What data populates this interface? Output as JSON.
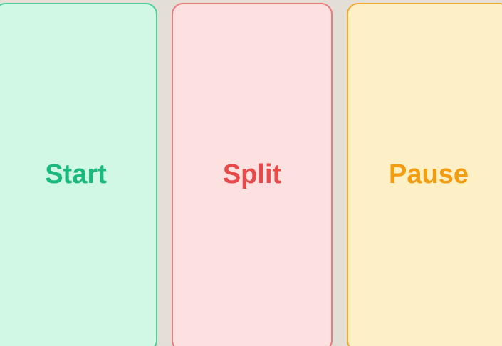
{
  "buttons": {
    "start": {
      "label": "Start",
      "text_color": "#1bb97d",
      "background": "#d1f7e5",
      "border": "#4ccf9b"
    },
    "split": {
      "label": "Split",
      "text_color": "#e84a4a",
      "background": "#fde0e0",
      "border": "#ec7b7b"
    },
    "pause": {
      "label": "Pause",
      "text_color": "#f29d12",
      "background": "#fef0c6",
      "border": "#f2ab2e"
    }
  }
}
